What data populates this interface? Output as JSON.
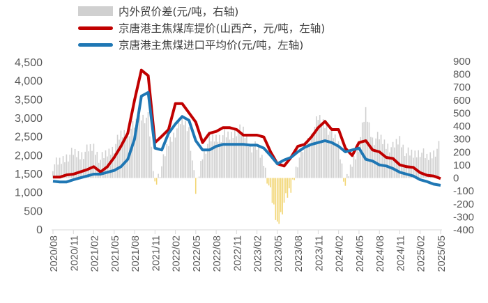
{
  "chart_data": {
    "type": "bar+line (dual axis)",
    "title": "",
    "legend": [
      {
        "name": "内外贸价差(元/吨，右轴)",
        "kind": "bar",
        "color": "#d0d0d0",
        "neg_color": "#f2d675"
      },
      {
        "name": "京唐港主焦煤库提价(山西产，元/吨，左轴)",
        "kind": "line",
        "color": "#c00000"
      },
      {
        "name": "京唐港主焦煤进口平均价(元/吨，左轴)",
        "kind": "line",
        "color": "#1f77b4"
      }
    ],
    "x_tick_labels": [
      "2020/08",
      "2020/11",
      "2021/02",
      "2021/05",
      "2021/08",
      "2021/11",
      "2022/02",
      "2022/05",
      "2022/08",
      "2022/11",
      "2023/02",
      "2023/05",
      "2023/08",
      "2023/11",
      "2024/02",
      "2024/05",
      "2024/08",
      "2024/11",
      "2025/02",
      "2025/05"
    ],
    "left_axis": {
      "label": "元/吨",
      "min": 0,
      "max": 4500,
      "step": 500,
      "tick_labels": [
        "0",
        "500",
        "1,000",
        "1,500",
        "2,000",
        "2,500",
        "3,000",
        "3,500",
        "4,000",
        "4,500"
      ]
    },
    "right_axis": {
      "label": "元/吨",
      "min": -400,
      "max": 900,
      "step": 100,
      "tick_labels": [
        "-400",
        "-300",
        "-200",
        "-100",
        "0",
        "100",
        "200",
        "300",
        "400",
        "500",
        "600",
        "700",
        "800",
        "900"
      ]
    },
    "x": [
      "2020/08",
      "2020/09",
      "2020/10",
      "2020/11",
      "2020/12",
      "2021/01",
      "2021/02",
      "2021/03",
      "2021/04",
      "2021/05",
      "2021/06",
      "2021/07",
      "2021/08",
      "2021/09",
      "2021/10",
      "2021/11",
      "2021/12",
      "2022/01",
      "2022/02",
      "2022/03",
      "2022/04",
      "2022/05",
      "2022/06",
      "2022/07",
      "2022/08",
      "2022/09",
      "2022/10",
      "2022/11",
      "2022/12",
      "2023/01",
      "2023/02",
      "2023/03",
      "2023/04",
      "2023/05",
      "2023/06",
      "2023/07",
      "2023/08",
      "2023/09",
      "2023/10",
      "2023/11",
      "2023/12",
      "2024/01",
      "2024/02",
      "2024/03",
      "2024/04",
      "2024/05",
      "2024/06",
      "2024/07",
      "2024/08",
      "2024/09",
      "2024/10",
      "2024/11",
      "2024/12",
      "2025/01",
      "2025/02",
      "2025/03",
      "2025/04",
      "2025/05"
    ],
    "series": [
      {
        "name": "京唐港主焦煤库提价(山西产，元/吨，左轴)",
        "axis": "left",
        "values": [
          1420,
          1420,
          1480,
          1500,
          1560,
          1620,
          1700,
          1560,
          1700,
          1950,
          2250,
          2600,
          3500,
          4300,
          4150,
          2350,
          2520,
          2700,
          3400,
          3400,
          3150,
          2900,
          2350,
          2600,
          2650,
          2750,
          2750,
          2700,
          2550,
          2550,
          2550,
          2500,
          2100,
          1780,
          1720,
          1950,
          2250,
          2300,
          2500,
          2750,
          2920,
          2700,
          2700,
          2200,
          2000,
          2350,
          2400,
          2150,
          2100,
          1950,
          1920,
          1750,
          1700,
          1680,
          1540,
          1470,
          1450,
          1380
        ]
      },
      {
        "name": "京唐港主焦煤进口平均价(元/吨，左轴)",
        "axis": "left",
        "values": [
          1310,
          1290,
          1290,
          1350,
          1400,
          1450,
          1500,
          1500,
          1550,
          1600,
          1700,
          1900,
          2450,
          3600,
          3700,
          2200,
          2150,
          2600,
          2850,
          3050,
          2950,
          2400,
          2150,
          2150,
          2250,
          2300,
          2300,
          2300,
          2300,
          2280,
          2280,
          2200,
          2000,
          1780,
          1880,
          1950,
          2100,
          2220,
          2300,
          2350,
          2400,
          2350,
          2250,
          2100,
          2150,
          2200,
          1900,
          1850,
          1750,
          1720,
          1650,
          1550,
          1500,
          1450,
          1350,
          1300,
          1230,
          1200
        ]
      },
      {
        "name": "内外贸价差(元/吨，右轴)",
        "axis": "right",
        "kind": "bar",
        "values": [
          100,
          120,
          170,
          190,
          180,
          210,
          240,
          140,
          190,
          240,
          330,
          360,
          400,
          480,
          460,
          -50,
          90,
          270,
          360,
          450,
          380,
          -110,
          180,
          290,
          310,
          330,
          320,
          370,
          360,
          250,
          230,
          130,
          -120,
          -360,
          -190,
          -90,
          130,
          240,
          330,
          460,
          420,
          340,
          260,
          -60,
          110,
          250,
          510,
          300,
          310,
          260,
          230,
          300,
          190,
          180,
          210,
          150,
          200,
          250
        ]
      }
    ]
  }
}
